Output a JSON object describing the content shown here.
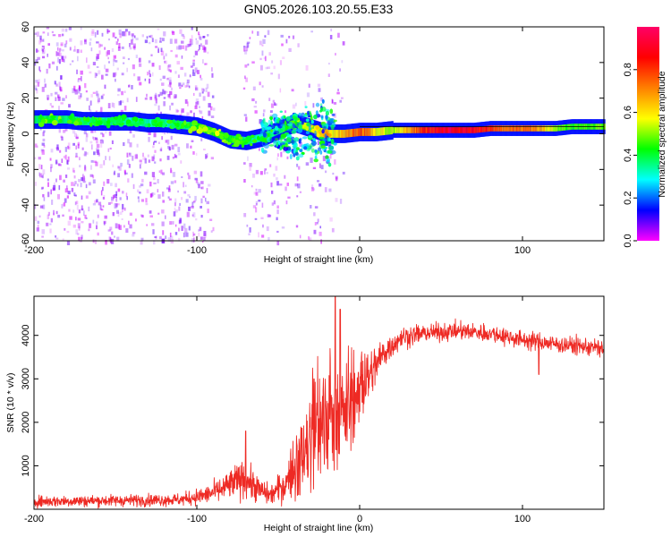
{
  "title": "GN05.2026.103.20.55.E33",
  "colors": {
    "trace": "#ee2a24",
    "background": "#ffffff",
    "frame": "#000000",
    "colormap": [
      "#ff00ff",
      "#0000ff",
      "#00ffff",
      "#00ff00",
      "#ffff00",
      "#ff8000",
      "#ff0000",
      "#ff0066"
    ]
  },
  "chart_data": [
    {
      "type": "heatmap",
      "name": "spectrogram",
      "xlabel": "Height of straight line (km)",
      "ylabel": "Frequency (Hz)",
      "xlim": [
        -200,
        150
      ],
      "ylim": [
        -60,
        60
      ],
      "xticks": [
        -200,
        -100,
        0,
        100
      ],
      "xtick_labels": [
        "-200",
        "-100",
        "0",
        "100"
      ],
      "yticks": [
        -60,
        -40,
        -20,
        0,
        20,
        40,
        60
      ],
      "ytick_labels": [
        "-60",
        "-40",
        "-20",
        "0",
        "20",
        "40",
        "60"
      ],
      "colorbar": {
        "label": "Normalized spectral amplitude",
        "range": [
          0,
          1
        ],
        "ticks": [
          0,
          0.2,
          0.4,
          0.6,
          0.8
        ],
        "tick_labels": [
          "0.0",
          "0.2",
          "0.4",
          "0.6",
          "0.8"
        ]
      },
      "ridge": [
        {
          "x": -200,
          "f": 8,
          "a": 0.4
        },
        {
          "x": -190,
          "f": 8,
          "a": 0.42
        },
        {
          "x": -180,
          "f": 8,
          "a": 0.4
        },
        {
          "x": -170,
          "f": 7,
          "a": 0.38
        },
        {
          "x": -160,
          "f": 7,
          "a": 0.38
        },
        {
          "x": -150,
          "f": 7,
          "a": 0.36
        },
        {
          "x": -140,
          "f": 7,
          "a": 0.35
        },
        {
          "x": -130,
          "f": 6,
          "a": 0.35
        },
        {
          "x": -120,
          "f": 6,
          "a": 0.35
        },
        {
          "x": -110,
          "f": 5,
          "a": 0.38
        },
        {
          "x": -100,
          "f": 4,
          "a": 0.45
        },
        {
          "x": -90,
          "f": 1,
          "a": 0.48
        },
        {
          "x": -80,
          "f": -3,
          "a": 0.45
        },
        {
          "x": -70,
          "f": -4,
          "a": 0.38
        },
        {
          "x": -60,
          "f": -2,
          "a": 0.35
        },
        {
          "x": -50,
          "f": 2,
          "a": 0.4
        },
        {
          "x": -40,
          "f": 6,
          "a": 0.45
        },
        {
          "x": -30,
          "f": 3,
          "a": 0.52
        },
        {
          "x": -20,
          "f": 0,
          "a": 0.62
        },
        {
          "x": -10,
          "f": 0,
          "a": 0.7
        },
        {
          "x": 0,
          "f": 1,
          "a": 0.85
        },
        {
          "x": 10,
          "f": 1,
          "a": 0.62
        },
        {
          "x": 20,
          "f": 2,
          "a": 0.55
        },
        {
          "x": 30,
          "f": 2,
          "a": 0.72
        },
        {
          "x": 40,
          "f": 2,
          "a": 0.9
        },
        {
          "x": 50,
          "f": 2,
          "a": 0.95
        },
        {
          "x": 60,
          "f": 2,
          "a": 0.98
        },
        {
          "x": 70,
          "f": 2,
          "a": 0.95
        },
        {
          "x": 80,
          "f": 3,
          "a": 0.85
        },
        {
          "x": 90,
          "f": 3,
          "a": 0.78
        },
        {
          "x": 100,
          "f": 3,
          "a": 0.8
        },
        {
          "x": 110,
          "f": 3,
          "a": 0.72
        },
        {
          "x": 120,
          "f": 3,
          "a": 0.55
        },
        {
          "x": 130,
          "f": 4,
          "a": 0.48
        },
        {
          "x": 140,
          "f": 4,
          "a": 0.5
        },
        {
          "x": 150,
          "f": 4,
          "a": 0.52
        }
      ]
    },
    {
      "type": "line",
      "name": "snr",
      "xlabel": "Height of straight line (km)",
      "ylabel": "SNR (10 * v/v)",
      "xlim": [
        -200,
        150
      ],
      "ylim": [
        0,
        4900
      ],
      "xticks": [
        -200,
        -100,
        0,
        100
      ],
      "xtick_labels": [
        "-200",
        "-100",
        "0",
        "100"
      ],
      "yticks": [
        1000,
        2000,
        3000,
        4000
      ],
      "ytick_labels": [
        "1000",
        "2000",
        "3000",
        "4000"
      ],
      "envelope": [
        {
          "x": -200,
          "mean": 180,
          "spread": 130
        },
        {
          "x": -150,
          "mean": 200,
          "spread": 130
        },
        {
          "x": -110,
          "mean": 220,
          "spread": 140
        },
        {
          "x": -95,
          "mean": 320,
          "spread": 200
        },
        {
          "x": -85,
          "mean": 450,
          "spread": 280
        },
        {
          "x": -75,
          "mean": 650,
          "spread": 400
        },
        {
          "x": -70,
          "mean": 700,
          "spread": 420
        },
        {
          "x": -62,
          "mean": 450,
          "spread": 300
        },
        {
          "x": -55,
          "mean": 320,
          "spread": 220
        },
        {
          "x": -45,
          "mean": 600,
          "spread": 420
        },
        {
          "x": -38,
          "mean": 1000,
          "spread": 800
        },
        {
          "x": -30,
          "mean": 1500,
          "spread": 1100
        },
        {
          "x": -25,
          "mean": 1900,
          "spread": 1300
        },
        {
          "x": -18,
          "mean": 2100,
          "spread": 1400
        },
        {
          "x": -12,
          "mean": 2100,
          "spread": 1200
        },
        {
          "x": -5,
          "mean": 2400,
          "spread": 900
        },
        {
          "x": 0,
          "mean": 2600,
          "spread": 700
        },
        {
          "x": 8,
          "mean": 3200,
          "spread": 500
        },
        {
          "x": 15,
          "mean": 3600,
          "spread": 350
        },
        {
          "x": 25,
          "mean": 3950,
          "spread": 250
        },
        {
          "x": 40,
          "mean": 4050,
          "spread": 200
        },
        {
          "x": 60,
          "mean": 4100,
          "spread": 200
        },
        {
          "x": 80,
          "mean": 4050,
          "spread": 200
        },
        {
          "x": 100,
          "mean": 3900,
          "spread": 200
        },
        {
          "x": 120,
          "mean": 3800,
          "spread": 200
        },
        {
          "x": 150,
          "mean": 3700,
          "spread": 200
        }
      ],
      "peaks": [
        {
          "x": -70,
          "y": 1800
        },
        {
          "x": -28,
          "y": 3000
        },
        {
          "x": -15,
          "y": 4900
        },
        {
          "x": -12,
          "y": 4600
        },
        {
          "x": 110,
          "y": 3100
        }
      ]
    }
  ]
}
